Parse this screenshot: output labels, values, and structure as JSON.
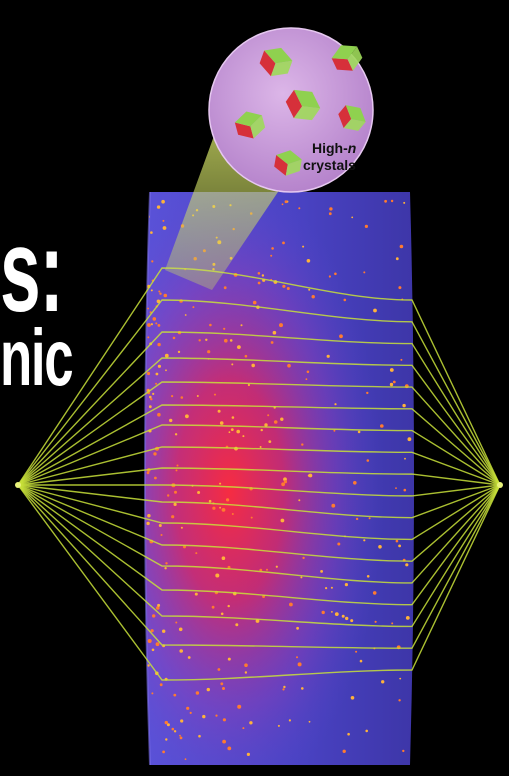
{
  "headline": {
    "line1": "s:",
    "line2": "nic"
  },
  "inset": {
    "label_line1_prefix": "High-",
    "label_line1_var": "n",
    "label_line2": "crystals"
  },
  "colors": {
    "background": "#000000",
    "lens_blue": "#4b44c8",
    "lens_glow": "#e0245a",
    "rays": "#c8e03a",
    "inset_fill": "#c79ad8",
    "crystal_green": "#8fd14f",
    "crystal_red": "#d6303a"
  }
}
